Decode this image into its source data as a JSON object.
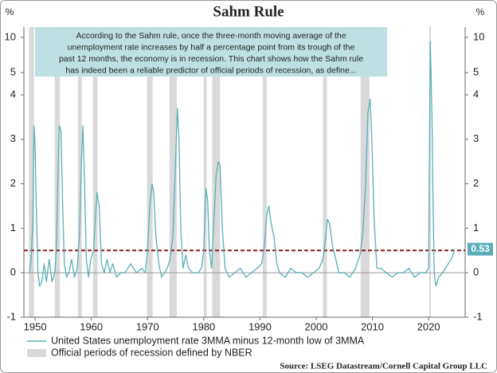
{
  "chart_data": {
    "type": "line",
    "title": "Sahm Rule",
    "y_label": "%",
    "annotation": [
      "According to the Sahm rule, once the three-month moving average of the",
      "unemployment rate increases by half a percentage point from its trough of the",
      "past 12 months, the economy is in recession. This chart shows how the Sahm rule",
      "has indeed been a reliable predictor of official periods of recession, as define..."
    ],
    "source": "Source: LSEG Datastream/Cornell Capital Group LLC",
    "xlim": [
      1948,
      2026.5
    ],
    "xticks": [
      1950,
      1960,
      1970,
      1980,
      1990,
      2000,
      2010,
      2020
    ],
    "panels": [
      {
        "ylim": [
          4,
          11
        ],
        "yticks": [
          5,
          10
        ]
      },
      {
        "ylim": [
          -1,
          4
        ],
        "yticks": [
          -1,
          0,
          1,
          2,
          3,
          4
        ]
      }
    ],
    "threshold": {
      "value": 0.5,
      "color": "#8b1a1a"
    },
    "recession_name": "Official periods of recession defined by NBER",
    "recession_color": "#d9d9d9",
    "recessions": [
      [
        1948.9,
        1949.8
      ],
      [
        1953.5,
        1954.4
      ],
      [
        1957.6,
        1958.3
      ],
      [
        1960.3,
        1961.1
      ],
      [
        1969.9,
        1970.9
      ],
      [
        1973.9,
        1975.2
      ],
      [
        1980.0,
        1980.5
      ],
      [
        1981.5,
        1982.9
      ],
      [
        1990.5,
        1991.2
      ],
      [
        2001.2,
        2001.9
      ],
      [
        2007.9,
        2009.5
      ],
      [
        2020.1,
        2020.4
      ]
    ],
    "series": [
      {
        "name": "United States unemployment rate 3MMA minus 12-month low of 3MMA",
        "color": "#5aafb7",
        "x": [
          1949.0,
          1949.3,
          1949.6,
          1949.8,
          1950.0,
          1950.2,
          1950.5,
          1950.8,
          1951.2,
          1951.6,
          1952.0,
          1952.5,
          1953.0,
          1953.5,
          1953.8,
          1954.1,
          1954.3,
          1954.6,
          1954.9,
          1955.2,
          1955.6,
          1956.0,
          1956.5,
          1957.0,
          1957.5,
          1957.9,
          1958.2,
          1958.5,
          1958.8,
          1959.1,
          1959.5,
          1959.9,
          1960.4,
          1960.8,
          1961.0,
          1961.4,
          1961.8,
          1962.3,
          1962.8,
          1963.3,
          1963.8,
          1964.5,
          1965.2,
          1966.0,
          1967.0,
          1968.0,
          1969.0,
          1969.6,
          1970.0,
          1970.4,
          1970.8,
          1971.1,
          1971.5,
          1972.0,
          1972.5,
          1973.0,
          1973.5,
          1974.0,
          1974.5,
          1974.9,
          1975.3,
          1975.6,
          1975.9,
          1976.3,
          1976.8,
          1977.3,
          1978.0,
          1979.0,
          1979.6,
          1980.0,
          1980.4,
          1980.7,
          1981.0,
          1981.4,
          1981.8,
          1982.2,
          1982.6,
          1982.9,
          1983.3,
          1983.8,
          1984.5,
          1985.5,
          1986.5,
          1987.5,
          1988.5,
          1989.5,
          1990.3,
          1990.8,
          1991.2,
          1991.6,
          1992.0,
          1992.5,
          1993.0,
          1993.5,
          1994.5,
          1995.5,
          1996.5,
          1997.5,
          1998.5,
          1999.5,
          2000.5,
          2001.2,
          2001.6,
          2002.0,
          2002.4,
          2002.9,
          2003.5,
          2004.0,
          2005.0,
          2006.0,
          2007.0,
          2007.8,
          2008.3,
          2008.8,
          2009.2,
          2009.6,
          2009.9,
          2010.3,
          2010.8,
          2011.5,
          2012.5,
          2013.5,
          2014.5,
          2015.5,
          2016.5,
          2017.5,
          2018.5,
          2019.5,
          2020.0,
          2020.3,
          2020.45,
          2020.6,
          2020.8,
          2021.0,
          2021.3,
          2021.8,
          2022.5,
          2023.0,
          2023.5,
          2024.0,
          2024.4,
          2024.6
        ],
        "values": [
          0.0,
          0.3,
          1.2,
          3.3,
          2.8,
          1.5,
          0.0,
          -0.3,
          -0.2,
          0.2,
          -0.2,
          0.3,
          -0.2,
          0.0,
          0.6,
          2.4,
          3.3,
          3.2,
          1.5,
          0.2,
          -0.1,
          0.0,
          0.3,
          -0.1,
          0.1,
          0.9,
          2.4,
          3.3,
          2.0,
          0.3,
          -0.1,
          0.3,
          0.5,
          1.4,
          1.8,
          1.5,
          0.2,
          0.0,
          0.3,
          0.0,
          0.2,
          -0.1,
          0.0,
          0.0,
          0.2,
          0.0,
          0.1,
          0.0,
          0.5,
          1.5,
          2.0,
          1.8,
          0.8,
          0.2,
          -0.1,
          0.0,
          0.1,
          0.3,
          0.8,
          2.2,
          3.7,
          3.0,
          1.0,
          0.1,
          0.4,
          0.1,
          0.0,
          0.0,
          0.1,
          0.5,
          1.9,
          1.6,
          0.5,
          0.1,
          1.2,
          2.2,
          2.5,
          2.4,
          1.0,
          0.1,
          -0.1,
          0.0,
          0.1,
          -0.1,
          0.0,
          0.1,
          0.2,
          0.6,
          1.3,
          1.5,
          1.1,
          0.8,
          0.2,
          0.0,
          -0.1,
          0.1,
          0.0,
          0.0,
          -0.1,
          0.0,
          0.1,
          0.3,
          0.7,
          1.2,
          1.1,
          0.6,
          0.3,
          0.0,
          0.0,
          -0.1,
          0.1,
          0.4,
          0.9,
          2.0,
          3.6,
          3.9,
          3.0,
          1.2,
          0.1,
          0.1,
          0.0,
          -0.1,
          0.0,
          0.0,
          0.1,
          -0.1,
          0.0,
          0.0,
          0.1,
          9.4,
          4.5,
          3.5,
          1.5,
          0.0,
          -0.3,
          -0.1,
          0.0,
          0.1,
          0.2,
          0.3,
          0.43,
          0.53
        ]
      }
    ]
  }
}
